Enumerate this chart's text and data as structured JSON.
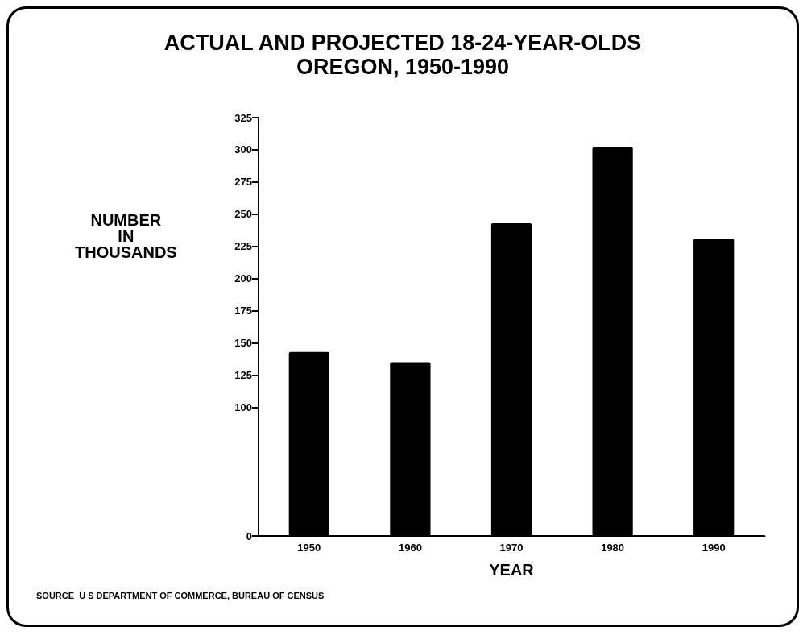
{
  "chart_data": {
    "type": "bar",
    "title": "ACTUAL AND PROJECTED 18-24-YEAR-OLDS",
    "subtitle": "OREGON, 1950-1990",
    "xlabel": "YEAR",
    "ylabel": "NUMBER\nIN\nTHOUSANDS",
    "categories": [
      "1950",
      "1960",
      "1970",
      "1980",
      "1990"
    ],
    "values": [
      143,
      135,
      243,
      302,
      231
    ],
    "color": "#000000",
    "ylim": [
      0,
      325
    ],
    "yticks": [
      0,
      100,
      125,
      150,
      175,
      200,
      225,
      250,
      275,
      300,
      325
    ],
    "grid": false,
    "annotations": [
      "SOURCE  U S DEPARTMENT OF COMMERCE, BUREAU OF CENSUS"
    ]
  }
}
